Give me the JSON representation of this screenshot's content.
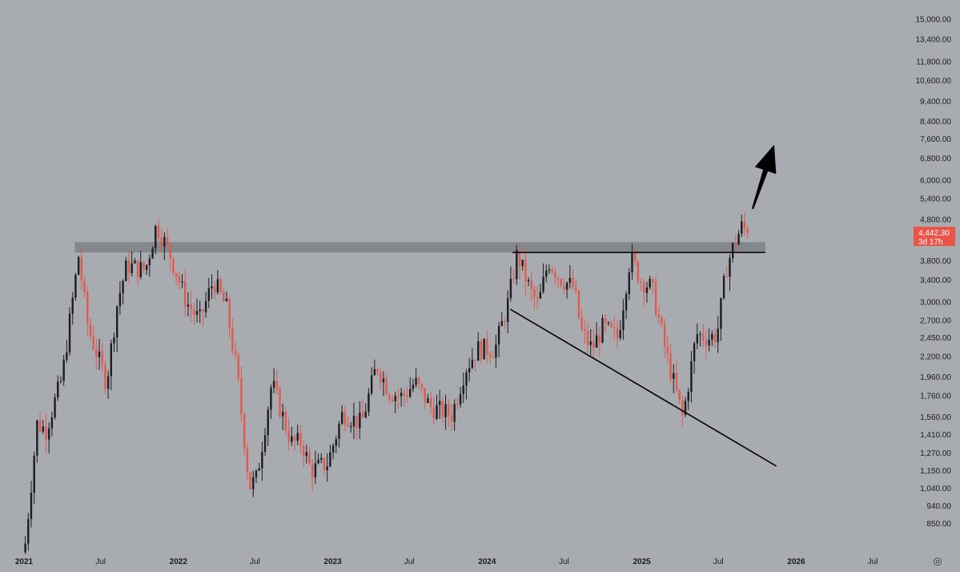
{
  "chart_data": {
    "type": "candlestick",
    "y_scale": "log",
    "ylim": [
      800,
      16000
    ],
    "y_ticks": [
      "850.00",
      "940.00",
      "1,040.00",
      "1,150.00",
      "1,270.00",
      "1,410.00",
      "1,560.00",
      "1,760.00",
      "1,960.00",
      "2,200.00",
      "2,450.00",
      "2,700.00",
      "3,000.00",
      "3,400.00",
      "3,800.00",
      "4,800.00",
      "5,400.00",
      "6,000.00",
      "6,800.00",
      "7,600.00",
      "8,400.00",
      "9,400.00",
      "10,600.00",
      "11,800.00",
      "13,400.00",
      "15,000.00"
    ],
    "x_ticks": [
      {
        "date": "2021-01-01",
        "label": "2021",
        "bold": true
      },
      {
        "date": "2021-07-01",
        "label": "Jul",
        "bold": false
      },
      {
        "date": "2022-01-01",
        "label": "2022",
        "bold": true
      },
      {
        "date": "2022-07-01",
        "label": "Jul",
        "bold": false
      },
      {
        "date": "2023-01-01",
        "label": "2023",
        "bold": true
      },
      {
        "date": "2023-07-01",
        "label": "Jul",
        "bold": false
      },
      {
        "date": "2024-01-01",
        "label": "2024",
        "bold": true
      },
      {
        "date": "2024-07-01",
        "label": "Jul",
        "bold": false
      },
      {
        "date": "2025-01-01",
        "label": "2025",
        "bold": true
      },
      {
        "date": "2025-07-01",
        "label": "Jul",
        "bold": false
      },
      {
        "date": "2026-01-01",
        "label": "2026",
        "bold": true
      },
      {
        "date": "2026-07-01",
        "label": "Jul",
        "bold": false
      }
    ],
    "price_keypoints": [
      [
        "2021-01-04",
        760
      ],
      [
        "2021-02-01",
        1500
      ],
      [
        "2021-02-22",
        1450
      ],
      [
        "2021-04-01",
        1950
      ],
      [
        "2021-05-10",
        3900
      ],
      [
        "2021-06-01",
        2600
      ],
      [
        "2021-07-15",
        1900
      ],
      [
        "2021-08-10",
        3000
      ],
      [
        "2021-09-01",
        3700
      ],
      [
        "2021-10-15",
        3600
      ],
      [
        "2021-11-10",
        4650
      ],
      [
        "2021-12-10",
        4000
      ],
      [
        "2022-01-20",
        3000
      ],
      [
        "2022-02-20",
        2700
      ],
      [
        "2022-03-25",
        3400
      ],
      [
        "2022-04-25",
        2900
      ],
      [
        "2022-05-20",
        2000
      ],
      [
        "2022-06-18",
        1050
      ],
      [
        "2022-07-05",
        1100
      ],
      [
        "2022-08-10",
        1900
      ],
      [
        "2022-09-25",
        1350
      ],
      [
        "2022-10-20",
        1350
      ],
      [
        "2022-11-10",
        1150
      ],
      [
        "2022-12-20",
        1200
      ],
      [
        "2023-01-25",
        1600
      ],
      [
        "2023-03-10",
        1500
      ],
      [
        "2023-04-15",
        2100
      ],
      [
        "2023-05-15",
        1800
      ],
      [
        "2023-06-15",
        1750
      ],
      [
        "2023-07-15",
        1900
      ],
      [
        "2023-08-20",
        1650
      ],
      [
        "2023-10-10",
        1580
      ],
      [
        "2023-11-10",
        2050
      ],
      [
        "2023-12-10",
        2300
      ],
      [
        "2024-01-20",
        2300
      ],
      [
        "2024-02-20",
        3000
      ],
      [
        "2024-03-12",
        3950
      ],
      [
        "2024-04-15",
        3150
      ],
      [
        "2024-05-01",
        2950
      ],
      [
        "2024-05-25",
        3800
      ],
      [
        "2024-06-20",
        3450
      ],
      [
        "2024-07-25",
        3250
      ],
      [
        "2024-08-10",
        2550
      ],
      [
        "2024-09-05",
        2300
      ],
      [
        "2024-10-01",
        2600
      ],
      [
        "2024-11-05",
        2450
      ],
      [
        "2024-12-05",
        3900
      ],
      [
        "2024-12-30",
        3400
      ],
      [
        "2025-01-25",
        3250
      ],
      [
        "2025-02-25",
        2300
      ],
      [
        "2025-04-08",
        1550
      ],
      [
        "2025-05-10",
        2500
      ],
      [
        "2025-06-10",
        2450
      ],
      [
        "2025-06-28",
        2500
      ],
      [
        "2025-07-20",
        3650
      ],
      [
        "2025-08-10",
        4250
      ],
      [
        "2025-08-25",
        4600
      ],
      [
        "2025-09-10",
        4442.3
      ]
    ],
    "resistance_zone": {
      "y_low": 3980,
      "y_high": 4220,
      "x_start": "2021-05-01",
      "x_end": "2025-10-20"
    },
    "horizontal_line": {
      "y": 3980,
      "x_start": "2024-03-01",
      "x_end": "2025-10-20"
    },
    "descending_trendline": {
      "start": [
        "2024-02-25",
        2880
      ],
      "end": [
        "2025-11-15",
        1180
      ]
    },
    "arrow": {
      "start": [
        "2025-09-20",
        5100
      ],
      "end": [
        "2025-11-10",
        7350
      ],
      "direction": "up"
    },
    "last_price": {
      "value": 4442.3,
      "label": "4,442.30",
      "countdown": "3d 17h"
    },
    "colors": {
      "background": "#a8abb0",
      "up_candle": "#1c1d21",
      "down_candle": "#e05a4e",
      "last_price_box": "#eb5548",
      "zone": "#7e8187",
      "lines": "#000000",
      "axis_text": "#1a1b1f"
    },
    "settings_icon": "settings-gear-icon"
  }
}
